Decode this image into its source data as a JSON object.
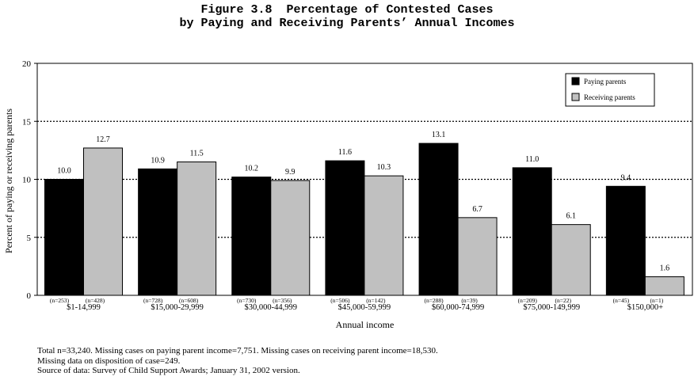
{
  "title_lines": [
    "Figure 3.8  Percentage of Contested Cases",
    "by Paying and Receiving Parents’ Annual Incomes"
  ],
  "chart_data": {
    "type": "bar",
    "title": "Figure 3.8  Percentage of Contested Cases by Paying and Receiving Parents’ Annual Incomes",
    "xlabel": "Annual income",
    "ylabel": "Percent of paying or receiving parents",
    "ylim": [
      0,
      20
    ],
    "yticks": [
      "0",
      "5",
      "10",
      "15",
      "20"
    ],
    "grid": "dotted horizontal at 5, 10, 15",
    "legend_position": "top-right",
    "categories": [
      "$1-14,999",
      "$15,000-29,999",
      "$30,000-44,999",
      "$45,000-59,999",
      "$60,000-74,999",
      "$75,000-149,999",
      "$150,000+"
    ],
    "series": [
      {
        "name": "Paying parents",
        "color": "#000000",
        "values": [
          10.0,
          10.9,
          10.2,
          11.6,
          13.1,
          11.0,
          9.4
        ],
        "labels": [
          "10.0",
          "10.9",
          "10.2",
          "11.6",
          "13.1",
          "11.0",
          "9.4"
        ],
        "n": [
          "(n=253)",
          "(n=728)",
          "(n=730)",
          "(n=506)",
          "(n=288)",
          "(n=209)",
          "(n=45)"
        ]
      },
      {
        "name": "Receiving parents",
        "color": "#c0c0c0",
        "values": [
          12.7,
          11.5,
          9.9,
          10.3,
          6.7,
          6.1,
          1.6
        ],
        "labels": [
          "12.7",
          "11.5",
          "9.9",
          "10.3",
          "6.7",
          "6.1",
          "1.6"
        ],
        "n": [
          "(n=428)",
          "(n=608)",
          "(n=356)",
          "(n=142)",
          "(n=39)",
          "(n=22)",
          "(n=1)"
        ]
      }
    ]
  },
  "notes": [
    "Total n=33,240.  Missing cases on paying parent income=7,751.  Missing cases on receiving parent income=18,530.",
    "Missing data on disposition of case=249.",
    "Source of data:  Survey of Child Support Awards; January 31, 2002 version."
  ]
}
